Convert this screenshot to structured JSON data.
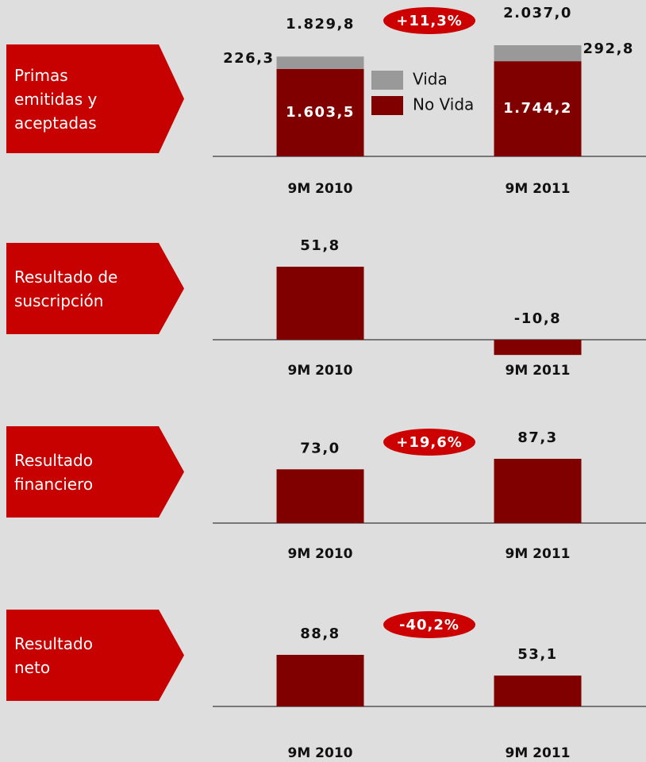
{
  "chart_data": [
    {
      "type": "stacked_bar",
      "title": "Primas\nemitidas y\naceptadas",
      "categories": [
        "9M 2010",
        "9M 2011"
      ],
      "series": [
        {
          "name": "Vida",
          "color": "#999999",
          "values": [
            226.3,
            292.8
          ],
          "value_labels": [
            "226,3",
            "292,8"
          ]
        },
        {
          "name": "No Vida",
          "color": "#800000",
          "values": [
            1603.5,
            1744.2
          ],
          "value_labels": [
            "1.603,5",
            "1.744,2"
          ]
        }
      ],
      "totals": [
        1829.8,
        2037.0
      ],
      "total_labels": [
        "1.829,8",
        "2.037,0"
      ],
      "annotation": "+11,3%"
    },
    {
      "type": "bar",
      "title": "Resultado de\nsuscripción",
      "categories": [
        "9M 2010",
        "9M 2011"
      ],
      "values": [
        51.8,
        -10.8
      ],
      "value_labels": [
        "51,8",
        "-10,8"
      ],
      "color": "#800000"
    },
    {
      "type": "bar",
      "title": "Resultado\nfinanciero",
      "categories": [
        "9M 2010",
        "9M 2011"
      ],
      "values": [
        73.0,
        87.3
      ],
      "value_labels": [
        "73,0",
        "87,3"
      ],
      "color": "#800000",
      "annotation": "+19,6%"
    },
    {
      "type": "bar",
      "title": "Resultado\nneto",
      "categories": [
        "9M 2010",
        "9M 2011"
      ],
      "values": [
        88.8,
        53.1
      ],
      "value_labels": [
        "88,8",
        "53,1"
      ],
      "color": "#800000",
      "annotation": "-40,2%"
    }
  ]
}
